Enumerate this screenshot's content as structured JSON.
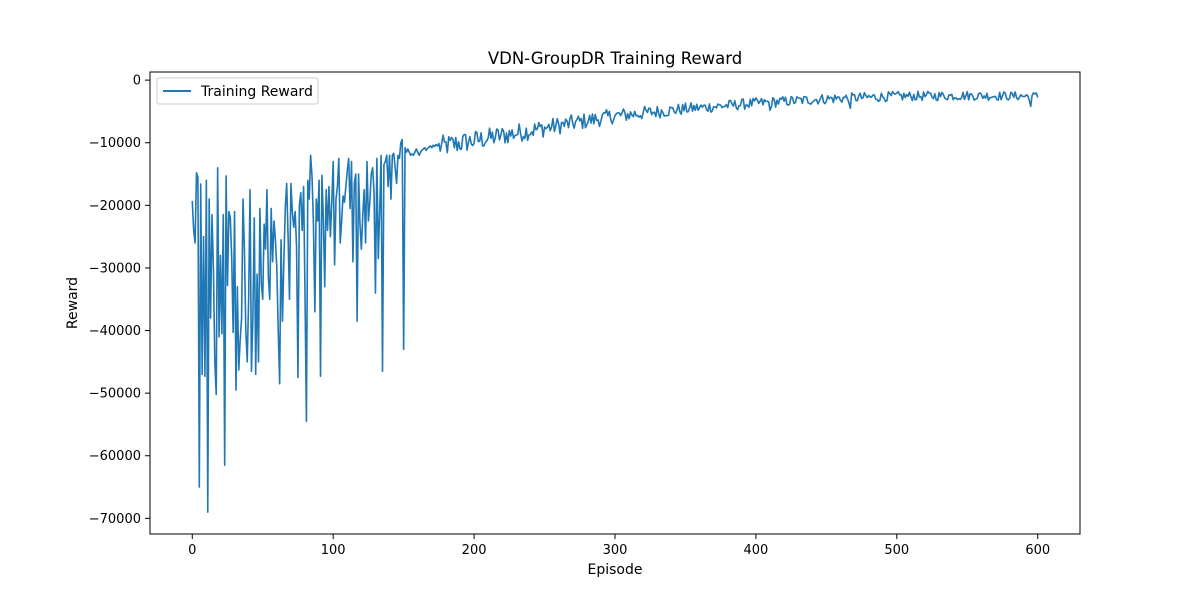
{
  "chart_data": {
    "type": "line",
    "title": "VDN-GroupDR Training Reward",
    "xlabel": "Episode",
    "ylabel": "Reward",
    "xlim": [
      -30,
      630
    ],
    "ylim": [
      -72500,
      1300
    ],
    "xticks": [
      0,
      100,
      200,
      300,
      400,
      500,
      600
    ],
    "yticks": [
      0,
      -10000,
      -20000,
      -30000,
      -40000,
      -50000,
      -60000,
      -70000
    ],
    "grid": false,
    "legend_position": "top-left",
    "series": [
      {
        "name": "Training Reward",
        "color": "#1f77b4",
        "segments": [
          {
            "start": 0,
            "end": 40,
            "values": [
              -19300,
              -24000,
              -26000,
              -14800,
              -15500,
              -65000,
              -16600,
              -47000,
              -25000,
              -47300,
              -16000,
              -69000,
              -19000,
              -38000,
              -21500,
              -30000,
              -45000,
              -50200,
              -14000,
              -41000,
              -28000,
              -40500,
              -21500,
              -61500,
              -15300,
              -32800,
              -21000,
              -22000,
              -28500,
              -40300,
              -21000,
              -49500,
              -33000,
              -46300,
              -41500,
              -38000,
              -19000,
              -27000,
              -40000,
              -45000
            ]
          },
          {
            "start": 40,
            "end": 175,
            "values": [
              -35000,
              -17500,
              -46500,
              -38000,
              -22000,
              -47000,
              -31000,
              -45000,
              -20500,
              -32500,
              -35000,
              -23000,
              -27000,
              -17500,
              -31500,
              -35000,
              -20500,
              -29000,
              -22500,
              -25500,
              -30000,
              -40000,
              -48500,
              -25500,
              -38500,
              -29000,
              -20500,
              -16500,
              -25000,
              -35000,
              -16500,
              -21000,
              -23500,
              -21000,
              -26500,
              -47500,
              -20000,
              -18000,
              -24000,
              -17000,
              -34000,
              -54500,
              -16000,
              -19000,
              -12000,
              -15500,
              -23000,
              -37000,
              -19000,
              -22500,
              -16000,
              -47300,
              -15200,
              -22000,
              -33000,
              -17500,
              -24000,
              -17000,
              -25000,
              -19500,
              -13000,
              -29500,
              -19000,
              -17000,
              -12500,
              -26000,
              -22500,
              -18500,
              -19500,
              -17000,
              -14500,
              -12500,
              -20500,
              -13000,
              -29000,
              -16500,
              -15000,
              -38500,
              -15000,
              -23000,
              -27000,
              -21500,
              -17500,
              -26000,
              -13000,
              -22500,
              -19500,
              -15000,
              -14000,
              -18000,
              -34000,
              -12500,
              -28500,
              -21000,
              -12000,
              -46500,
              -13500,
              -13000,
              -12000,
              -17000,
              -12000,
              -19000,
              -12000,
              -11700,
              -14000,
              -16500,
              -12000,
              -12500,
              -10000,
              -9500,
              -43000,
              -10800,
              -11500,
              -11000,
              -11500,
              -12000,
              -11800,
              -12000,
              -11500,
              -11000,
              -11500,
              -12000,
              -11500,
              -11200,
              -11000,
              -10800,
              -11200,
              -10900,
              -10700,
              -10500,
              -10800,
              -10400,
              -10600,
              -10300,
              -10500
            ]
          },
          {
            "start": 175,
            "end": 600,
            "base": [
              [
                175,
                -10500
              ],
              [
                200,
                -9500
              ],
              [
                250,
                -7500
              ],
              [
                300,
                -5600
              ],
              [
                350,
                -4500
              ],
              [
                400,
                -3600
              ],
              [
                450,
                -2900
              ],
              [
                500,
                -2500
              ],
              [
                550,
                -2400
              ],
              [
                600,
                -2500
              ]
            ],
            "noise_amplitude": [
              [
                175,
                1800
              ],
              [
                260,
                1400
              ],
              [
                360,
                900
              ],
              [
                600,
                700
              ]
            ],
            "dip_at": [
              [
                410,
                -4800
              ],
              [
                467,
                -4500
              ],
              [
                595,
                -4200
              ]
            ]
          }
        ]
      }
    ]
  }
}
